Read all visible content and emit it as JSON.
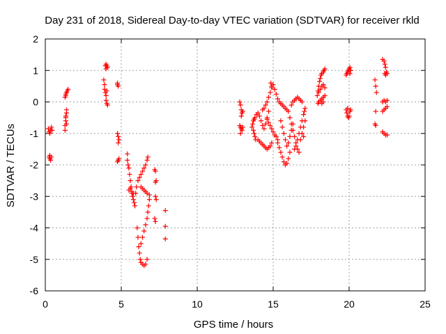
{
  "chart_data": {
    "type": "scatter",
    "title": "Day 231 of 2018, Sidereal Day-to-day VTEC variation (SDTVAR) for receiver rkld",
    "xlabel": "GPS time / hours",
    "ylabel": "SDTVAR / TECUs",
    "xlim": [
      0,
      25
    ],
    "ylim": [
      -6,
      2
    ],
    "xticks": [
      0,
      5,
      10,
      15,
      20,
      25
    ],
    "yticks": [
      -6,
      -5,
      -4,
      -3,
      -2,
      -1,
      0,
      1,
      2
    ],
    "grid": true,
    "marker": "+",
    "marker_color": "#ff0000",
    "series": [
      {
        "name": "SDTVAR",
        "points": [
          [
            0.2,
            -0.85
          ],
          [
            0.25,
            -0.95
          ],
          [
            0.3,
            -1.0
          ],
          [
            0.35,
            -0.9
          ],
          [
            0.4,
            -0.8
          ],
          [
            0.45,
            -0.9
          ],
          [
            0.25,
            -1.75
          ],
          [
            0.3,
            -1.8
          ],
          [
            0.35,
            -1.85
          ],
          [
            0.4,
            -1.75
          ],
          [
            0.3,
            -1.7
          ],
          [
            1.3,
            -0.9
          ],
          [
            1.3,
            -0.75
          ],
          [
            1.35,
            -0.6
          ],
          [
            1.35,
            -0.45
          ],
          [
            1.4,
            -0.35
          ],
          [
            1.4,
            -0.25
          ],
          [
            1.35,
            -0.5
          ],
          [
            1.4,
            -0.7
          ],
          [
            1.3,
            0.15
          ],
          [
            1.35,
            0.25
          ],
          [
            1.4,
            0.3
          ],
          [
            1.45,
            0.35
          ],
          [
            1.5,
            0.4
          ],
          [
            1.35,
            0.2
          ],
          [
            3.85,
            0.7
          ],
          [
            3.9,
            0.55
          ],
          [
            3.9,
            0.4
          ],
          [
            3.95,
            0.3
          ],
          [
            4.0,
            0.2
          ],
          [
            4.0,
            0.05
          ],
          [
            4.05,
            -0.05
          ],
          [
            4.1,
            -0.1
          ],
          [
            4.05,
            0.35
          ],
          [
            3.95,
            1.15
          ],
          [
            4.0,
            1.2
          ],
          [
            4.05,
            1.15
          ],
          [
            4.1,
            1.1
          ],
          [
            4.0,
            1.05
          ],
          [
            4.75,
            0.55
          ],
          [
            4.8,
            0.5
          ],
          [
            4.75,
            0.6
          ],
          [
            4.75,
            -1.0
          ],
          [
            4.8,
            -1.1
          ],
          [
            4.85,
            -1.2
          ],
          [
            4.8,
            -1.3
          ],
          [
            4.85,
            -1.8
          ],
          [
            4.75,
            -1.9
          ],
          [
            4.8,
            -1.85
          ],
          [
            5.4,
            -1.65
          ],
          [
            5.4,
            -1.85
          ],
          [
            5.45,
            -2.0
          ],
          [
            5.5,
            -2.1
          ],
          [
            5.55,
            -2.3
          ],
          [
            5.6,
            -2.5
          ],
          [
            5.65,
            -2.7
          ],
          [
            5.7,
            -2.9
          ],
          [
            5.75,
            -3.0
          ],
          [
            5.8,
            -3.1
          ],
          [
            5.85,
            -3.2
          ],
          [
            5.9,
            -3.3
          ],
          [
            5.5,
            -2.8
          ],
          [
            5.6,
            -2.75
          ],
          [
            5.7,
            -2.85
          ],
          [
            5.8,
            -2.9
          ],
          [
            5.95,
            -2.9
          ],
          [
            6.0,
            -2.7
          ],
          [
            6.1,
            -2.5
          ],
          [
            6.2,
            -2.4
          ],
          [
            6.3,
            -2.3
          ],
          [
            6.4,
            -2.2
          ],
          [
            6.5,
            -2.1
          ],
          [
            6.6,
            -2.0
          ],
          [
            6.7,
            -1.85
          ],
          [
            6.75,
            -1.75
          ],
          [
            6.3,
            -2.7
          ],
          [
            6.4,
            -2.75
          ],
          [
            6.5,
            -2.8
          ],
          [
            6.6,
            -2.85
          ],
          [
            6.7,
            -2.9
          ],
          [
            6.05,
            -4.0
          ],
          [
            6.1,
            -4.3
          ],
          [
            6.15,
            -4.6
          ],
          [
            6.2,
            -4.8
          ],
          [
            6.25,
            -5.0
          ],
          [
            6.3,
            -5.1
          ],
          [
            6.4,
            -5.15
          ],
          [
            6.5,
            -5.2
          ],
          [
            6.6,
            -5.15
          ],
          [
            6.7,
            -5.0
          ],
          [
            6.3,
            -4.5
          ],
          [
            6.4,
            -4.3
          ],
          [
            6.5,
            -4.1
          ],
          [
            6.6,
            -3.9
          ],
          [
            6.7,
            -3.7
          ],
          [
            6.75,
            -3.5
          ],
          [
            6.8,
            -3.3
          ],
          [
            6.85,
            -3.1
          ],
          [
            6.85,
            -2.95
          ],
          [
            7.2,
            -2.15
          ],
          [
            7.25,
            -2.2
          ],
          [
            7.3,
            -2.5
          ],
          [
            7.25,
            -2.55
          ],
          [
            7.25,
            -3.0
          ],
          [
            7.3,
            -3.1
          ],
          [
            7.2,
            -3.7
          ],
          [
            7.25,
            -3.8
          ],
          [
            7.9,
            -3.45
          ],
          [
            7.9,
            -3.95
          ],
          [
            7.9,
            -4.35
          ],
          [
            12.8,
            0.0
          ],
          [
            12.85,
            -0.1
          ],
          [
            12.9,
            -0.25
          ],
          [
            12.95,
            -0.35
          ],
          [
            13.0,
            -0.3
          ],
          [
            12.9,
            -0.45
          ],
          [
            12.8,
            -0.75
          ],
          [
            12.85,
            -0.8
          ],
          [
            12.9,
            -0.85
          ],
          [
            12.95,
            -0.9
          ],
          [
            13.0,
            -0.8
          ],
          [
            12.85,
            -1.0
          ],
          [
            13.6,
            -0.8
          ],
          [
            13.65,
            -0.7
          ],
          [
            13.7,
            -0.6
          ],
          [
            13.75,
            -0.55
          ],
          [
            13.8,
            -0.5
          ],
          [
            13.7,
            -0.9
          ],
          [
            13.75,
            -1.0
          ],
          [
            13.8,
            -1.1
          ],
          [
            13.85,
            -1.2
          ],
          [
            13.9,
            -0.4
          ],
          [
            14.0,
            -0.35
          ],
          [
            14.1,
            -0.45
          ],
          [
            14.2,
            -0.6
          ],
          [
            14.3,
            -0.75
          ],
          [
            14.4,
            -0.85
          ],
          [
            14.5,
            -0.7
          ],
          [
            14.6,
            -0.5
          ],
          [
            14.7,
            -0.3
          ],
          [
            14.0,
            -1.2
          ],
          [
            14.1,
            -1.25
          ],
          [
            14.2,
            -1.3
          ],
          [
            14.3,
            -1.35
          ],
          [
            14.4,
            -1.4
          ],
          [
            14.5,
            -1.45
          ],
          [
            14.6,
            -1.5
          ],
          [
            14.7,
            -1.45
          ],
          [
            14.8,
            -1.4
          ],
          [
            14.9,
            -1.3
          ],
          [
            14.3,
            -0.25
          ],
          [
            14.4,
            -0.2
          ],
          [
            14.5,
            -0.1
          ],
          [
            14.6,
            0.0
          ],
          [
            14.7,
            0.15
          ],
          [
            14.8,
            0.3
          ],
          [
            14.9,
            0.45
          ],
          [
            15.0,
            0.55
          ],
          [
            14.85,
            0.6
          ],
          [
            14.9,
            0.5
          ],
          [
            14.6,
            -0.55
          ],
          [
            14.7,
            -0.65
          ],
          [
            14.8,
            -0.75
          ],
          [
            14.9,
            -0.85
          ],
          [
            15.0,
            -0.95
          ],
          [
            15.1,
            -1.05
          ],
          [
            15.2,
            -1.1
          ],
          [
            15.3,
            -1.2
          ],
          [
            15.1,
            0.4
          ],
          [
            15.2,
            0.25
          ],
          [
            15.3,
            0.1
          ],
          [
            15.4,
            0.0
          ],
          [
            15.5,
            -0.05
          ],
          [
            15.6,
            -0.1
          ],
          [
            15.7,
            -0.15
          ],
          [
            15.8,
            -0.2
          ],
          [
            15.9,
            -0.25
          ],
          [
            15.3,
            -1.3
          ],
          [
            15.4,
            -1.45
          ],
          [
            15.5,
            -1.6
          ],
          [
            15.6,
            -1.75
          ],
          [
            15.7,
            -1.9
          ],
          [
            15.8,
            -2.0
          ],
          [
            15.9,
            -1.95
          ],
          [
            16.0,
            -1.8
          ],
          [
            16.1,
            -1.6
          ],
          [
            15.5,
            -0.6
          ],
          [
            15.6,
            -0.8
          ],
          [
            15.7,
            -1.0
          ],
          [
            15.8,
            -1.2
          ],
          [
            15.9,
            -1.4
          ],
          [
            16.0,
            -1.3
          ],
          [
            16.1,
            -1.1
          ],
          [
            16.2,
            -0.9
          ],
          [
            16.3,
            -0.7
          ],
          [
            16.0,
            -0.3
          ],
          [
            16.1,
            -0.5
          ],
          [
            16.2,
            -0.7
          ],
          [
            16.3,
            -0.9
          ],
          [
            16.4,
            -1.1
          ],
          [
            16.5,
            -1.3
          ],
          [
            16.6,
            -1.5
          ],
          [
            16.7,
            -1.6
          ],
          [
            16.2,
            -0.1
          ],
          [
            16.3,
            0.0
          ],
          [
            16.4,
            0.05
          ],
          [
            16.5,
            0.1
          ],
          [
            16.6,
            0.15
          ],
          [
            16.7,
            0.1
          ],
          [
            16.8,
            0.05
          ],
          [
            16.9,
            0.0
          ],
          [
            16.4,
            -1.5
          ],
          [
            16.5,
            -1.4
          ],
          [
            16.6,
            -1.2
          ],
          [
            16.7,
            -1.0
          ],
          [
            16.8,
            -0.8
          ],
          [
            16.9,
            -0.6
          ],
          [
            17.0,
            -0.4
          ],
          [
            17.05,
            -0.3
          ],
          [
            17.1,
            -0.2
          ],
          [
            16.8,
            -1.2
          ],
          [
            16.9,
            -1.0
          ],
          [
            17.0,
            -0.8
          ],
          [
            17.1,
            -0.6
          ],
          [
            17.0,
            -1.1
          ],
          [
            17.9,
            0.2
          ],
          [
            17.95,
            0.35
          ],
          [
            18.0,
            0.5
          ],
          [
            18.05,
            0.65
          ],
          [
            18.1,
            0.75
          ],
          [
            18.15,
            0.85
          ],
          [
            18.2,
            0.9
          ],
          [
            18.3,
            0.95
          ],
          [
            18.35,
            1.0
          ],
          [
            18.4,
            1.05
          ],
          [
            17.95,
            -0.05
          ],
          [
            18.0,
            0.0
          ],
          [
            18.1,
            0.05
          ],
          [
            18.2,
            0.1
          ],
          [
            18.3,
            0.15
          ],
          [
            18.4,
            0.2
          ],
          [
            18.3,
            0.0
          ],
          [
            18.2,
            -0.05
          ],
          [
            18.0,
            0.3
          ],
          [
            18.1,
            0.4
          ],
          [
            18.2,
            0.5
          ],
          [
            18.3,
            0.55
          ],
          [
            18.4,
            0.45
          ],
          [
            19.8,
            0.85
          ],
          [
            19.85,
            0.9
          ],
          [
            19.9,
            0.95
          ],
          [
            19.95,
            1.0
          ],
          [
            20.0,
            1.05
          ],
          [
            20.05,
            1.1
          ],
          [
            20.1,
            1.0
          ],
          [
            20.05,
            0.9
          ],
          [
            19.8,
            -0.25
          ],
          [
            19.85,
            -0.35
          ],
          [
            19.9,
            -0.45
          ],
          [
            19.95,
            -0.5
          ],
          [
            20.0,
            -0.45
          ],
          [
            20.05,
            -0.3
          ],
          [
            20.1,
            -0.25
          ],
          [
            19.9,
            -0.2
          ],
          [
            21.7,
            0.7
          ],
          [
            21.75,
            0.5
          ],
          [
            21.8,
            0.3
          ],
          [
            21.75,
            -0.3
          ],
          [
            21.7,
            -0.7
          ],
          [
            21.75,
            -0.75
          ],
          [
            22.2,
            1.35
          ],
          [
            22.3,
            1.3
          ],
          [
            22.35,
            1.2
          ],
          [
            22.4,
            1.1
          ],
          [
            22.45,
            0.95
          ],
          [
            22.5,
            0.9
          ],
          [
            22.35,
            0.9
          ],
          [
            22.4,
            0.85
          ],
          [
            22.2,
            0.0
          ],
          [
            22.3,
            0.05
          ],
          [
            22.4,
            0.0
          ],
          [
            22.5,
            0.05
          ],
          [
            22.2,
            -0.3
          ],
          [
            22.3,
            -0.25
          ],
          [
            22.4,
            -0.2
          ],
          [
            22.5,
            -0.15
          ],
          [
            22.2,
            -0.95
          ],
          [
            22.3,
            -1.0
          ],
          [
            22.4,
            -1.05
          ],
          [
            22.5,
            -1.05
          ]
        ]
      }
    ]
  }
}
